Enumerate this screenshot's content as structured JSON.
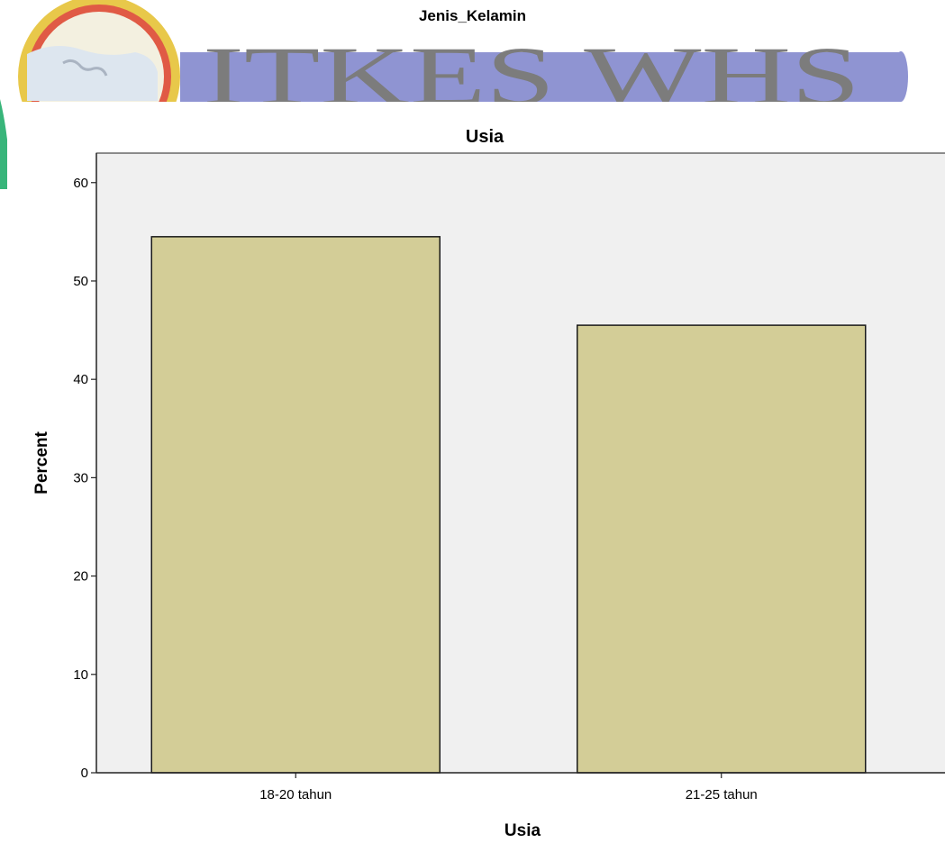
{
  "upper_chart": {
    "title": "Jenis_Kelamin"
  },
  "watermark": {
    "text": "ITKES WHS",
    "colors": {
      "logo_outer": "#e8c84a",
      "logo_ring": "#e05a45",
      "logo_green": "#38b57a",
      "band": "#8f94d2",
      "letters": "#7c7c7c"
    }
  },
  "chart_data": {
    "type": "bar",
    "title": "Usia",
    "categories": [
      "18-20 tahun",
      "21-25 tahun"
    ],
    "values": [
      54.5,
      45.5
    ],
    "xlabel": "Usia",
    "ylabel": "Percent",
    "ylim": [
      0,
      63
    ],
    "yticks": [
      0,
      10,
      20,
      30,
      40,
      50,
      60
    ],
    "grid": false,
    "colors": {
      "bar_fill": "#d3cd97",
      "bar_stroke": "#1a1a1a",
      "plot_background": "#f0f0f0"
    }
  }
}
